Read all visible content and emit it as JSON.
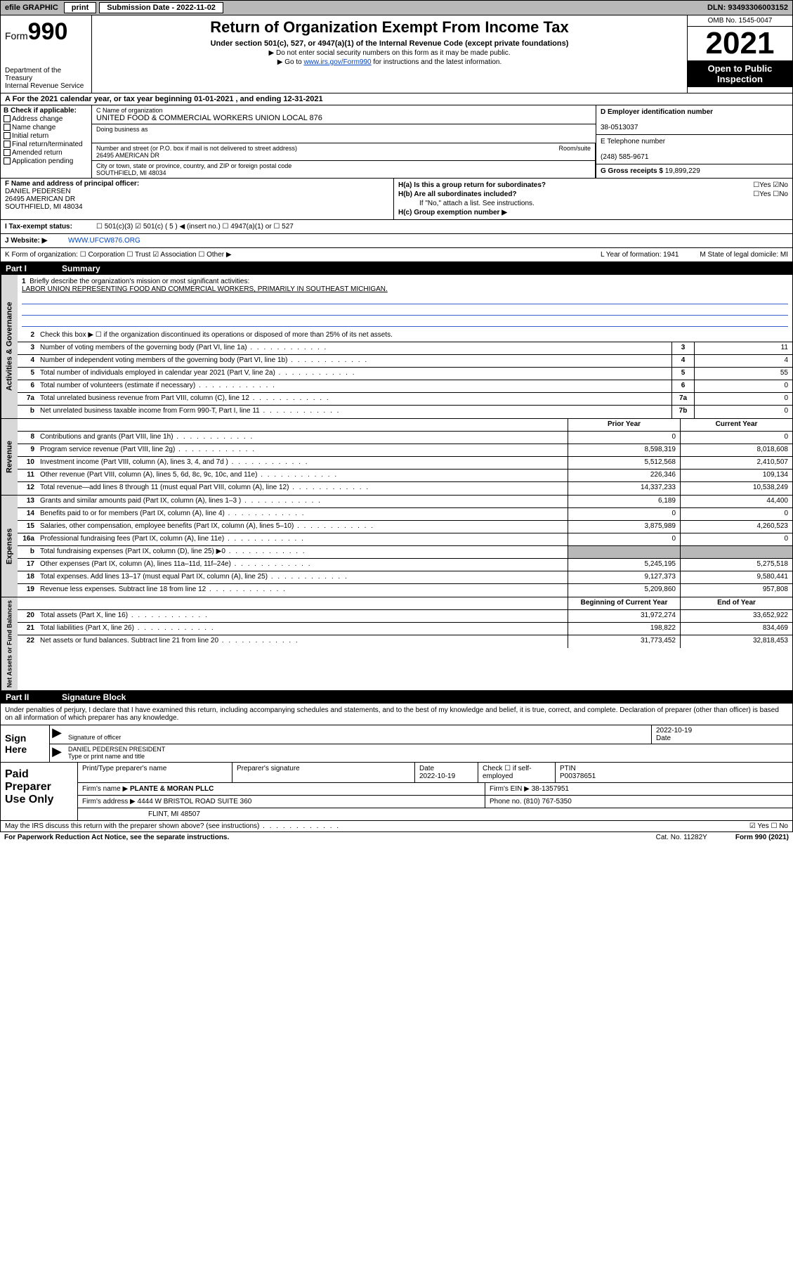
{
  "topbar": {
    "efile": "efile GRAPHIC",
    "print": "print",
    "subdate_label": "Submission Date - 2022-11-02",
    "dln": "DLN: 93493306003152"
  },
  "header": {
    "form_prefix": "Form",
    "form_num": "990",
    "dept": "Department of the Treasury",
    "irs": "Internal Revenue Service",
    "title": "Return of Organization Exempt From Income Tax",
    "sub1": "Under section 501(c), 527, or 4947(a)(1) of the Internal Revenue Code (except private foundations)",
    "sub2": "▶ Do not enter social security numbers on this form as it may be made public.",
    "sub3_pre": "▶ Go to ",
    "sub3_link": "www.irs.gov/Form990",
    "sub3_post": " for instructions and the latest information.",
    "omb": "OMB No. 1545-0047",
    "year": "2021",
    "openpub1": "Open to Public",
    "openpub2": "Inspection"
  },
  "rowA": "A For the 2021 calendar year, or tax year beginning 01-01-2021   , and ending 12-31-2021",
  "colB": {
    "title": "B Check if applicable:",
    "opts": [
      "Address change",
      "Name change",
      "Initial return",
      "Final return/terminated",
      "Amended return",
      "Application pending"
    ]
  },
  "colC": {
    "name_lbl": "C Name of organization",
    "name": "UNITED FOOD & COMMERCIAL WORKERS UNION LOCAL 876",
    "dba_lbl": "Doing business as",
    "dba": "",
    "addr_lbl": "Number and street (or P.O. box if mail is not delivered to street address)",
    "room_lbl": "Room/suite",
    "addr": "26495 AMERICAN DR",
    "city_lbl": "City or town, state or province, country, and ZIP or foreign postal code",
    "city": "SOUTHFIELD, MI  48034"
  },
  "colD": {
    "ein_lbl": "D Employer identification number",
    "ein": "38-0513037",
    "tel_lbl": "E Telephone number",
    "tel": "(248) 585-9671",
    "gross_lbl": "G Gross receipts $",
    "gross": "19,899,229"
  },
  "colF": {
    "lbl": "F Name and address of principal officer:",
    "name": "DANIEL PEDERSEN",
    "addr1": "26495 AMERICAN DR",
    "addr2": "SOUTHFIELD, MI  48034"
  },
  "colH": {
    "ha": "H(a)  Is this a group return for subordinates?",
    "ha_ans": "☐Yes ☑No",
    "hb": "H(b)  Are all subordinates included?",
    "hb_ans": "☐Yes ☐No",
    "hb_note": "If \"No,\" attach a list. See instructions.",
    "hc": "H(c)  Group exemption number ▶"
  },
  "rowI": {
    "lbl": "I    Tax-exempt status:",
    "opts": "☐ 501(c)(3)   ☑ 501(c) ( 5 ) ◀ (insert no.)   ☐ 4947(a)(1) or   ☐ 527"
  },
  "rowJ": {
    "lbl": "J   Website: ▶",
    "val": "WWW.UFCW876.ORG"
  },
  "rowK": {
    "lbl": "K Form of organization:  ☐ Corporation  ☐ Trust  ☑ Association  ☐ Other ▶",
    "l": "L Year of formation: 1941",
    "m": "M State of legal domicile: MI"
  },
  "part1": {
    "num": "Part I",
    "title": "Summary"
  },
  "mission": {
    "num": "1",
    "lbl": "Briefly describe the organization's mission or most significant activities:",
    "text": "LABOR UNION REPRESENTING FOOD AND COMMERCIAL WORKERS, PRIMARILY IN SOUTHEAST MICHIGAN."
  },
  "line2": {
    "num": "2",
    "desc": "Check this box ▶ ☐  if the organization discontinued its operations or disposed of more than 25% of its net assets."
  },
  "gov_rows": [
    {
      "num": "3",
      "desc": "Number of voting members of the governing body (Part VI, line 1a)",
      "box": "3",
      "val": "11"
    },
    {
      "num": "4",
      "desc": "Number of independent voting members of the governing body (Part VI, line 1b)",
      "box": "4",
      "val": "4"
    },
    {
      "num": "5",
      "desc": "Total number of individuals employed in calendar year 2021 (Part V, line 2a)",
      "box": "5",
      "val": "55"
    },
    {
      "num": "6",
      "desc": "Total number of volunteers (estimate if necessary)",
      "box": "6",
      "val": "0"
    },
    {
      "num": "7a",
      "desc": "Total unrelated business revenue from Part VIII, column (C), line 12",
      "box": "7a",
      "val": "0"
    },
    {
      "num": "b",
      "desc": "Net unrelated business taxable income from Form 990-T, Part I, line 11",
      "box": "7b",
      "val": "0"
    }
  ],
  "col_hdrs": {
    "py": "Prior Year",
    "cy": "Current Year"
  },
  "rev_rows": [
    {
      "num": "8",
      "desc": "Contributions and grants (Part VIII, line 1h)",
      "py": "0",
      "cy": "0"
    },
    {
      "num": "9",
      "desc": "Program service revenue (Part VIII, line 2g)",
      "py": "8,598,319",
      "cy": "8,018,608"
    },
    {
      "num": "10",
      "desc": "Investment income (Part VIII, column (A), lines 3, 4, and 7d )",
      "py": "5,512,568",
      "cy": "2,410,507"
    },
    {
      "num": "11",
      "desc": "Other revenue (Part VIII, column (A), lines 5, 6d, 8c, 9c, 10c, and 11e)",
      "py": "226,346",
      "cy": "109,134"
    },
    {
      "num": "12",
      "desc": "Total revenue—add lines 8 through 11 (must equal Part VIII, column (A), line 12)",
      "py": "14,337,233",
      "cy": "10,538,249"
    }
  ],
  "exp_rows": [
    {
      "num": "13",
      "desc": "Grants and similar amounts paid (Part IX, column (A), lines 1–3 )",
      "py": "6,189",
      "cy": "44,400"
    },
    {
      "num": "14",
      "desc": "Benefits paid to or for members (Part IX, column (A), line 4)",
      "py": "0",
      "cy": "0"
    },
    {
      "num": "15",
      "desc": "Salaries, other compensation, employee benefits (Part IX, column (A), lines 5–10)",
      "py": "3,875,989",
      "cy": "4,260,523"
    },
    {
      "num": "16a",
      "desc": "Professional fundraising fees (Part IX, column (A), line 11e)",
      "py": "0",
      "cy": "0"
    },
    {
      "num": "b",
      "desc": "Total fundraising expenses (Part IX, column (D), line 25) ▶0",
      "py": "",
      "cy": "",
      "grey": true
    },
    {
      "num": "17",
      "desc": "Other expenses (Part IX, column (A), lines 11a–11d, 11f–24e)",
      "py": "5,245,195",
      "cy": "5,275,518"
    },
    {
      "num": "18",
      "desc": "Total expenses. Add lines 13–17 (must equal Part IX, column (A), line 25)",
      "py": "9,127,373",
      "cy": "9,580,441"
    },
    {
      "num": "19",
      "desc": "Revenue less expenses. Subtract line 18 from line 12",
      "py": "5,209,860",
      "cy": "957,808"
    }
  ],
  "na_hdrs": {
    "py": "Beginning of Current Year",
    "cy": "End of Year"
  },
  "na_rows": [
    {
      "num": "20",
      "desc": "Total assets (Part X, line 16)",
      "py": "31,972,274",
      "cy": "33,652,922"
    },
    {
      "num": "21",
      "desc": "Total liabilities (Part X, line 26)",
      "py": "198,822",
      "cy": "834,469"
    },
    {
      "num": "22",
      "desc": "Net assets or fund balances. Subtract line 21 from line 20",
      "py": "31,773,452",
      "cy": "32,818,453"
    }
  ],
  "vtabs": {
    "gov": "Activities & Governance",
    "rev": "Revenue",
    "exp": "Expenses",
    "na": "Net Assets or Fund Balances"
  },
  "part2": {
    "num": "Part II",
    "title": "Signature Block"
  },
  "sig_intro": "Under penalties of perjury, I declare that I have examined this return, including accompanying schedules and statements, and to the best of my knowledge and belief, it is true, correct, and complete. Declaration of preparer (other than officer) is based on all information of which preparer has any knowledge.",
  "sign": {
    "left": "Sign Here",
    "sig_lbl": "Signature of officer",
    "date_lbl": "Date",
    "date": "2022-10-19",
    "name": "DANIEL PEDERSEN  PRESIDENT",
    "name_lbl": "Type or print name and title"
  },
  "prep": {
    "left": "Paid Preparer Use Only",
    "r1": {
      "c1": "Print/Type preparer's name",
      "c2": "Preparer's signature",
      "c3": "Date",
      "c3v": "2022-10-19",
      "c4": "Check ☐ if self-employed",
      "c5": "PTIN",
      "c5v": "P00378651"
    },
    "r2": {
      "c1": "Firm's name      ▶",
      "c1v": "PLANTE & MORAN PLLC",
      "c2": "Firm's EIN ▶",
      "c2v": "38-1357951"
    },
    "r3": {
      "c1": "Firm's address ▶",
      "c1v": "4444 W BRISTOL ROAD SUITE 360",
      "c2": "Phone no.",
      "c2v": "(810) 767-5350"
    },
    "r4": {
      "c1": "",
      "c1v": "FLINT, MI  48507"
    }
  },
  "footer": {
    "q": "May the IRS discuss this return with the preparer shown above? (see instructions)",
    "ans": "☑ Yes  ☐ No"
  },
  "pra": {
    "l": "For Paperwork Reduction Act Notice, see the separate instructions.",
    "m": "Cat. No. 11282Y",
    "r": "Form 990 (2021)"
  }
}
